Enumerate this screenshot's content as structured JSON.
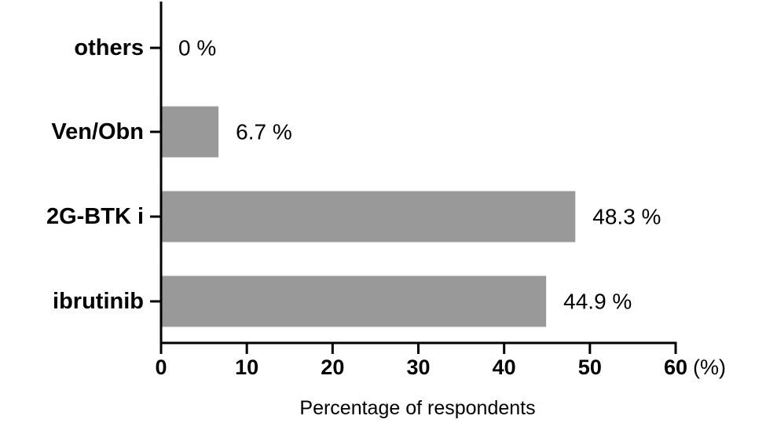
{
  "chart_data": {
    "type": "bar",
    "orientation": "horizontal",
    "categories": [
      "others",
      "Ven/Obn",
      "2G-BTK i",
      "ibrutinib"
    ],
    "values": [
      0,
      6.7,
      48.3,
      44.9
    ],
    "data_labels": [
      "0 %",
      "6.7 %",
      "48.3 %",
      "44.9 %"
    ],
    "xlabel": "Percentage of respondents",
    "x_unit": "(%)",
    "xlim": [
      0,
      60
    ],
    "xticks": [
      0,
      10,
      20,
      30,
      40,
      50,
      60
    ],
    "grid": false,
    "bar_color": "#999999"
  }
}
